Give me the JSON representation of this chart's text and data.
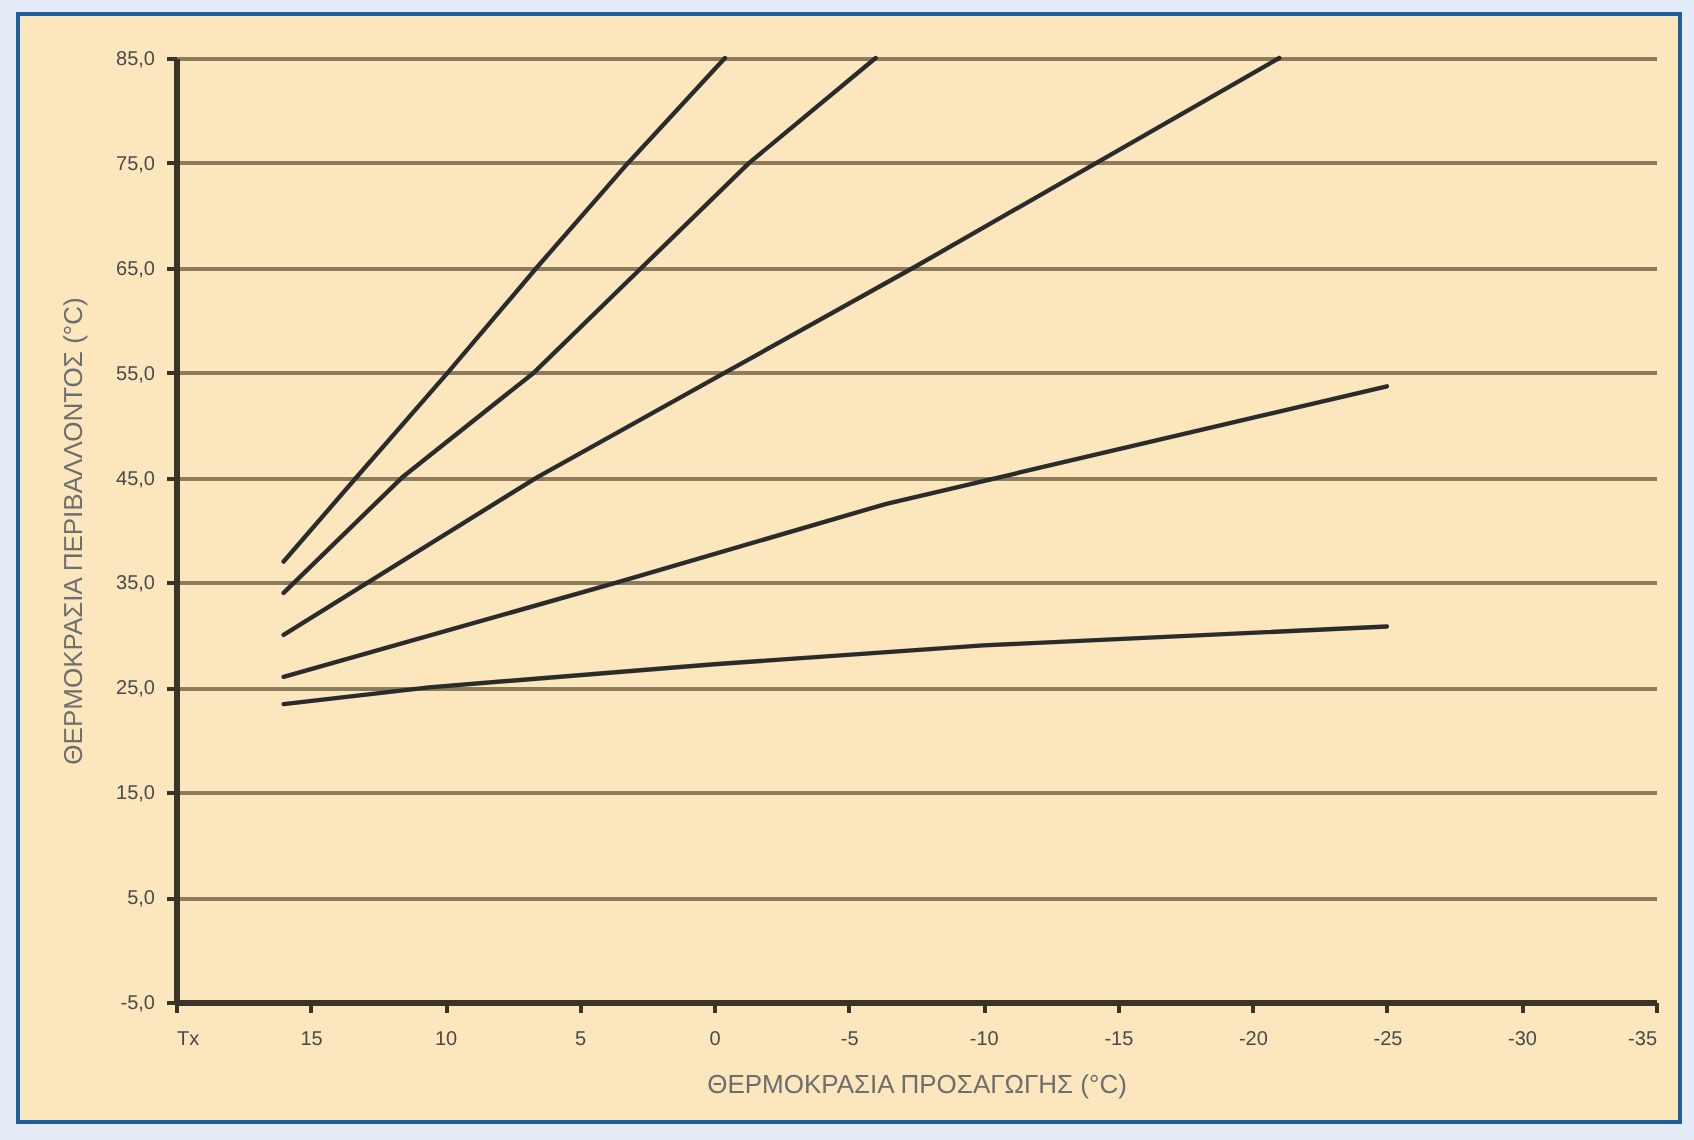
{
  "chart_data": {
    "type": "line",
    "xlabel": "ΘΕΡΜΟΚΡΑΣΙΑ ΠΡΟΣΑΓΩΓΗΣ (°C)",
    "ylabel": "ΘΕΡΜΟΚΡΑΣΙΑ ΠΕΡΙΒΑΛΛΟΝΤΟΣ (°C)",
    "xlim": [
      20,
      -35
    ],
    "xticks": [
      {
        "value": 20,
        "label": "Tx"
      },
      15,
      10,
      5,
      0,
      -5,
      -10,
      -15,
      -20,
      -25,
      -30,
      -35
    ],
    "ylim": [
      -5,
      85
    ],
    "yticks": [
      {
        "value": -5,
        "label": "-5,0"
      },
      {
        "value": 5,
        "label": "5,0"
      },
      {
        "value": 15,
        "label": "15,0"
      },
      {
        "value": 25,
        "label": "25,0"
      },
      {
        "value": 35,
        "label": "35,0"
      },
      {
        "value": 45,
        "label": "45,0"
      },
      {
        "value": 55,
        "label": "55,0"
      },
      {
        "value": 65,
        "label": "65,0"
      },
      {
        "value": 75,
        "label": "75,0"
      },
      {
        "value": 85,
        "label": "85,0"
      }
    ],
    "grid": "y",
    "marker": "none",
    "line_style": "solid",
    "series": [
      {
        "color": "#2b2b2b",
        "x": [
          16,
          13.3,
          9.9,
          6.6,
          3.2,
          -0.4
        ],
        "values": [
          37,
          45,
          55,
          65,
          75,
          85
        ]
      },
      {
        "color": "#2b2b2b",
        "x": [
          16,
          11.6,
          6.7,
          2.7,
          -1.3,
          -6
        ],
        "values": [
          34,
          45,
          55,
          65,
          75,
          85
        ]
      },
      {
        "color": "#2b2b2b",
        "x": [
          16,
          6.6,
          -0.4,
          -7.4,
          -21
        ],
        "values": [
          30,
          45,
          55,
          65,
          85
        ]
      },
      {
        "color": "#2b2b2b",
        "x": [
          16,
          3.6,
          -6.4,
          -25
        ],
        "values": [
          26,
          35,
          42.5,
          53.7
        ]
      },
      {
        "color": "#2b2b2b",
        "x": [
          16,
          10.6,
          0,
          -10,
          -25
        ],
        "values": [
          23.4,
          25,
          27.2,
          29,
          30.8
        ]
      }
    ]
  }
}
